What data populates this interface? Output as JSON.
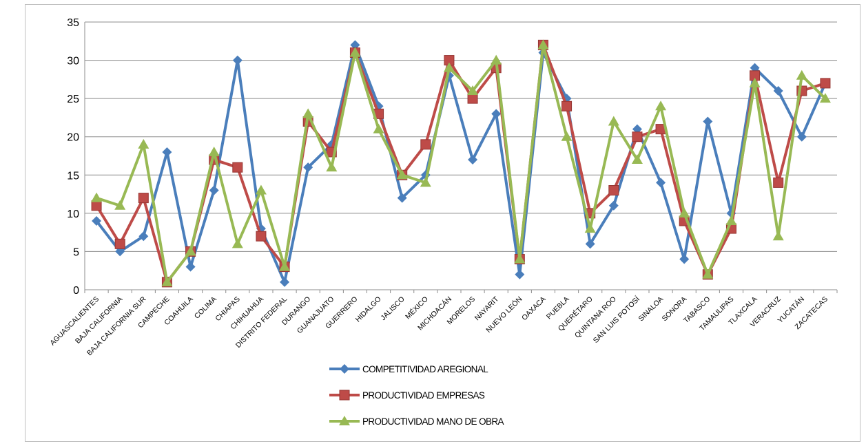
{
  "chart_data": {
    "type": "line",
    "title": "",
    "xlabel": "",
    "ylabel": "",
    "ylim": [
      0,
      35
    ],
    "yticks": [
      0,
      5,
      10,
      15,
      20,
      25,
      30,
      35
    ],
    "grid": "horizontal",
    "legend_position": "bottom",
    "categories": [
      "AGUASCALIENTES",
      "BAJA CALIFORNIA",
      "BAJA CALIFORNIA SUR",
      "CAMPECHE",
      "COAHUILA",
      "COLIMA",
      "CHIAPAS",
      "CHIHUAHUA",
      "DISTRITO FEDERAL",
      "DURANGO",
      "GUANAJUATO",
      "GUERRERO",
      "HIDALGO",
      "JALISCO",
      "MÉXICO",
      "MICHOACÁN",
      "MORELOS",
      "NAYARIT",
      "NUEVO LEÓN",
      "OAXACA",
      "PUEBLA",
      "QUERÉTARO",
      "QUINTANA ROO",
      "SAN LUIS POTOSÍ",
      "SINALOA",
      "SONORA",
      "TABASCO",
      "TAMAULIPAS",
      "TLAXCALA",
      "VERACRUZ",
      "YUCATÁN",
      "ZACATECAS"
    ],
    "series": [
      {
        "name": "COMPETITIVIDAD AREGIONAL",
        "color": "#4a7ebb",
        "marker": "diamond",
        "values": [
          9,
          5,
          7,
          18,
          3,
          13,
          30,
          8,
          1,
          16,
          19,
          32,
          24,
          12,
          15,
          28,
          17,
          23,
          2,
          31,
          25,
          6,
          11,
          21,
          14,
          4,
          22,
          10,
          29,
          26,
          20,
          27
        ]
      },
      {
        "name": "PRODUCTIVIDAD EMPRESAS",
        "color": "#be4b48",
        "marker": "square",
        "values": [
          11,
          6,
          12,
          1,
          5,
          17,
          16,
          7,
          3,
          22,
          18,
          31,
          23,
          15,
          19,
          30,
          25,
          29,
          4,
          32,
          24,
          10,
          13,
          20,
          21,
          9,
          2,
          8,
          28,
          14,
          26,
          27
        ]
      },
      {
        "name": "PRODUCTIVIDAD MANO DE OBRA",
        "color": "#98b954",
        "marker": "triangle",
        "values": [
          12,
          11,
          19,
          1,
          5,
          18,
          6,
          13,
          3,
          23,
          16,
          31,
          21,
          15,
          14,
          29,
          26,
          30,
          4,
          32,
          20,
          8,
          22,
          17,
          24,
          10,
          2,
          9,
          27,
          7,
          28,
          25
        ]
      }
    ]
  }
}
